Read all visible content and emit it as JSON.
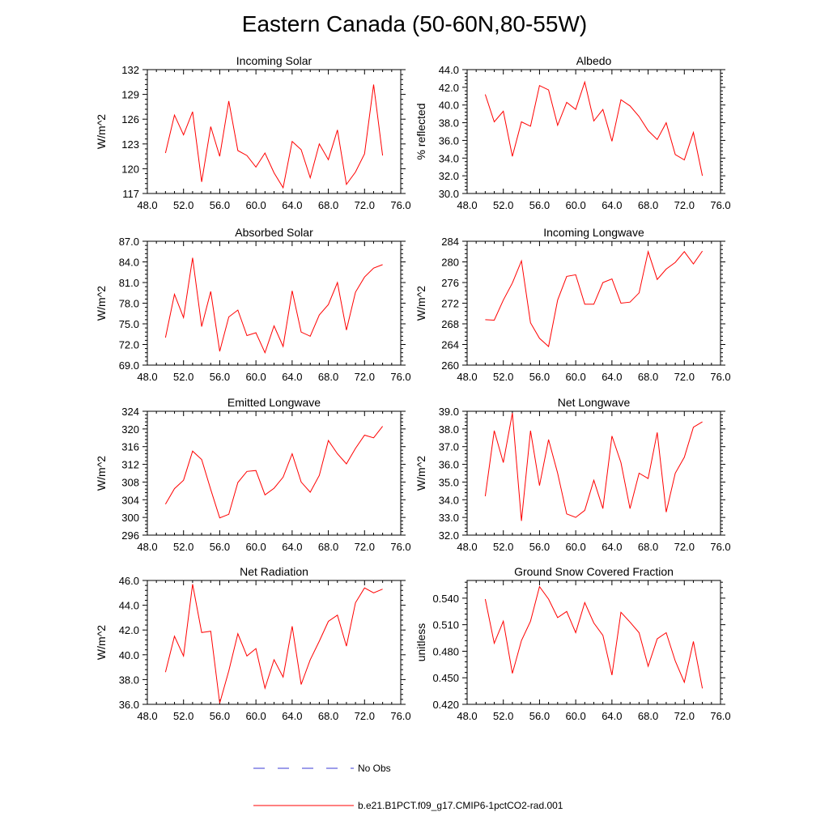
{
  "title": "Eastern Canada (50-60N,80-55W)",
  "colors": {
    "model_line": "#ff0000",
    "obs_line": "#3b3bd4",
    "axis": "#000000"
  },
  "legend": {
    "obs_label": "No Obs",
    "model_label": "b.e21.B1PCT.f09_g17.CMIP6-1pctCO2-rad.001"
  },
  "chart_data": [
    {
      "type": "line",
      "title": "Incoming Solar",
      "xlabel": "",
      "ylabel": "W/m^2",
      "xlim": [
        48,
        76
      ],
      "xticks": [
        48,
        52,
        56,
        60,
        64,
        68,
        72,
        76
      ],
      "xticklabels": [
        "48.0",
        "52.0",
        "56.0",
        "60.0",
        "64.0",
        "68.0",
        "72.0",
        "76.0"
      ],
      "ylim": [
        117,
        132
      ],
      "yticks": [
        117,
        120,
        123,
        126,
        129,
        132
      ],
      "yticklabels": [
        "117",
        "120",
        "123",
        "126",
        "129",
        "132"
      ],
      "x": [
        50,
        51,
        52,
        53,
        54,
        55,
        56,
        57,
        58,
        59,
        60,
        61,
        62,
        63,
        64,
        65,
        66,
        67,
        68,
        69,
        70,
        71,
        72,
        73,
        74
      ],
      "series": [
        {
          "name": "b.e21.B1PCT.f09_g17.CMIP6-1pctCO2-rad.001",
          "values": [
            121.9,
            126.5,
            124.1,
            126.9,
            118.4,
            125.1,
            121.5,
            128.2,
            122.2,
            121.6,
            120.2,
            121.9,
            119.5,
            117.7,
            123.3,
            122.3,
            118.9,
            123.0,
            121.1,
            124.7,
            118.1,
            119.6,
            121.8,
            130.2,
            121.6
          ]
        }
      ]
    },
    {
      "type": "line",
      "title": "Albedo",
      "xlabel": "",
      "ylabel": "% reflected",
      "xlim": [
        48,
        76
      ],
      "xticks": [
        48,
        52,
        56,
        60,
        64,
        68,
        72,
        76
      ],
      "xticklabels": [
        "48.0",
        "52.0",
        "56.0",
        "60.0",
        "64.0",
        "68.0",
        "72.0",
        "76.0"
      ],
      "ylim": [
        30,
        44
      ],
      "yticks": [
        30,
        32,
        34,
        36,
        38,
        40,
        42,
        44
      ],
      "yticklabels": [
        "30.0",
        "32.0",
        "34.0",
        "36.0",
        "38.0",
        "40.0",
        "42.0",
        "44.0"
      ],
      "x": [
        50,
        51,
        52,
        53,
        54,
        55,
        56,
        57,
        58,
        59,
        60,
        61,
        62,
        63,
        64,
        65,
        66,
        67,
        68,
        69,
        70,
        71,
        72,
        73,
        74
      ],
      "series": [
        {
          "name": "b.e21.B1PCT.f09_g17.CMIP6-1pctCO2-rad.001",
          "values": [
            41.2,
            38.1,
            39.3,
            34.2,
            38.1,
            37.6,
            42.2,
            41.7,
            37.7,
            40.3,
            39.5,
            42.6,
            38.2,
            39.5,
            35.9,
            40.6,
            39.9,
            38.7,
            37.1,
            36.1,
            38.0,
            34.4,
            33.8,
            36.9,
            32.0
          ]
        }
      ]
    },
    {
      "type": "line",
      "title": "Absorbed Solar",
      "xlabel": "",
      "ylabel": "W/m^2",
      "xlim": [
        48,
        76
      ],
      "xticks": [
        48,
        52,
        56,
        60,
        64,
        68,
        72,
        76
      ],
      "xticklabels": [
        "48.0",
        "52.0",
        "56.0",
        "60.0",
        "64.0",
        "68.0",
        "72.0",
        "76.0"
      ],
      "ylim": [
        69,
        87
      ],
      "yticks": [
        69,
        72,
        75,
        78,
        81,
        84,
        87
      ],
      "yticklabels": [
        "69.0",
        "72.0",
        "75.0",
        "78.0",
        "81.0",
        "84.0",
        "87.0"
      ],
      "x": [
        50,
        51,
        52,
        53,
        54,
        55,
        56,
        57,
        58,
        59,
        60,
        61,
        62,
        63,
        64,
        65,
        66,
        67,
        68,
        69,
        70,
        71,
        72,
        73,
        74
      ],
      "series": [
        {
          "name": "b.e21.B1PCT.f09_g17.CMIP6-1pctCO2-rad.001",
          "values": [
            73.0,
            79.3,
            75.9,
            84.6,
            74.6,
            79.7,
            71.0,
            76.0,
            77.0,
            73.3,
            73.7,
            70.8,
            74.7,
            71.7,
            79.8,
            73.8,
            73.2,
            76.3,
            77.8,
            81.0,
            74.1,
            79.6,
            81.8,
            83.1,
            83.6
          ]
        }
      ]
    },
    {
      "type": "line",
      "title": "Incoming Longwave",
      "xlabel": "",
      "ylabel": "W/m^2",
      "xlim": [
        48,
        76
      ],
      "xticks": [
        48,
        52,
        56,
        60,
        64,
        68,
        72,
        76
      ],
      "xticklabels": [
        "48.0",
        "52.0",
        "56.0",
        "60.0",
        "64.0",
        "68.0",
        "72.0",
        "76.0"
      ],
      "ylim": [
        260,
        284
      ],
      "yticks": [
        260,
        264,
        268,
        272,
        276,
        280,
        284
      ],
      "yticklabels": [
        "260",
        "264",
        "268",
        "272",
        "276",
        "280",
        "284"
      ],
      "x": [
        50,
        51,
        52,
        53,
        54,
        55,
        56,
        57,
        58,
        59,
        60,
        61,
        62,
        63,
        64,
        65,
        66,
        67,
        68,
        69,
        70,
        71,
        72,
        73,
        74
      ],
      "series": [
        {
          "name": "b.e21.B1PCT.f09_g17.CMIP6-1pctCO2-rad.001",
          "values": [
            268.8,
            268.7,
            272.6,
            275.9,
            280.2,
            268.2,
            265.2,
            263.6,
            272.6,
            277.2,
            277.5,
            271.8,
            271.8,
            276.0,
            276.7,
            272.0,
            272.2,
            274.0,
            282.0,
            276.6,
            278.6,
            279.9,
            282.0,
            279.6,
            282.1
          ]
        }
      ]
    },
    {
      "type": "line",
      "title": "Emitted Longwave",
      "xlabel": "",
      "ylabel": "W/m^2",
      "xlim": [
        48,
        76
      ],
      "xticks": [
        48,
        52,
        56,
        60,
        64,
        68,
        72,
        76
      ],
      "xticklabels": [
        "48.0",
        "52.0",
        "56.0",
        "60.0",
        "64.0",
        "68.0",
        "72.0",
        "76.0"
      ],
      "ylim": [
        296,
        324
      ],
      "yticks": [
        296,
        300,
        304,
        308,
        312,
        316,
        320,
        324
      ],
      "yticklabels": [
        "296",
        "300",
        "304",
        "308",
        "312",
        "316",
        "320",
        "324"
      ],
      "x": [
        50,
        51,
        52,
        53,
        54,
        55,
        56,
        57,
        58,
        59,
        60,
        61,
        62,
        63,
        64,
        65,
        66,
        67,
        68,
        69,
        70,
        71,
        72,
        73,
        74
      ],
      "series": [
        {
          "name": "b.e21.B1PCT.f09_g17.CMIP6-1pctCO2-rad.001",
          "values": [
            303.0,
            306.5,
            308.4,
            315.0,
            313.1,
            306.3,
            299.9,
            300.7,
            307.9,
            310.4,
            310.6,
            305.1,
            306.6,
            309.1,
            314.4,
            308.0,
            305.7,
            309.5,
            317.4,
            314.4,
            312.1,
            315.6,
            318.6,
            318.0,
            320.6
          ]
        }
      ]
    },
    {
      "type": "line",
      "title": "Net Longwave",
      "xlabel": "",
      "ylabel": "W/m^2",
      "xlim": [
        48,
        76
      ],
      "xticks": [
        48,
        52,
        56,
        60,
        64,
        68,
        72,
        76
      ],
      "xticklabels": [
        "48.0",
        "52.0",
        "56.0",
        "60.0",
        "64.0",
        "68.0",
        "72.0",
        "76.0"
      ],
      "ylim": [
        32,
        39
      ],
      "yticks": [
        32,
        33,
        34,
        35,
        36,
        37,
        38,
        39
      ],
      "yticklabels": [
        "32.0",
        "33.0",
        "34.0",
        "35.0",
        "36.0",
        "37.0",
        "38.0",
        "39.0"
      ],
      "x": [
        50,
        51,
        52,
        53,
        54,
        55,
        56,
        57,
        58,
        59,
        60,
        61,
        62,
        63,
        64,
        65,
        66,
        67,
        68,
        69,
        70,
        71,
        72,
        73,
        74
      ],
      "series": [
        {
          "name": "b.e21.B1PCT.f09_g17.CMIP6-1pctCO2-rad.001",
          "values": [
            34.2,
            37.9,
            36.1,
            38.9,
            32.8,
            37.9,
            34.8,
            37.4,
            35.5,
            33.2,
            33.0,
            33.4,
            35.1,
            33.5,
            37.6,
            36.1,
            33.5,
            35.5,
            35.2,
            37.8,
            33.3,
            35.5,
            36.4,
            38.1,
            38.4
          ]
        }
      ]
    },
    {
      "type": "line",
      "title": "Net Radiation",
      "xlabel": "",
      "ylabel": "W/m^2",
      "xlim": [
        48,
        76
      ],
      "xticks": [
        48,
        52,
        56,
        60,
        64,
        68,
        72,
        76
      ],
      "xticklabels": [
        "48.0",
        "52.0",
        "56.0",
        "60.0",
        "64.0",
        "68.0",
        "72.0",
        "76.0"
      ],
      "ylim": [
        36,
        46
      ],
      "yticks": [
        36,
        38,
        40,
        42,
        44,
        46
      ],
      "yticklabels": [
        "36.0",
        "38.0",
        "40.0",
        "42.0",
        "44.0",
        "46.0"
      ],
      "x": [
        50,
        51,
        52,
        53,
        54,
        55,
        56,
        57,
        58,
        59,
        60,
        61,
        62,
        63,
        64,
        65,
        66,
        67,
        68,
        69,
        70,
        71,
        72,
        73,
        74
      ],
      "series": [
        {
          "name": "b.e21.B1PCT.f09_g17.CMIP6-1pctCO2-rad.001",
          "values": [
            38.6,
            41.5,
            39.9,
            45.7,
            41.8,
            41.9,
            36.1,
            38.7,
            41.7,
            39.9,
            40.5,
            37.3,
            39.6,
            38.2,
            42.3,
            37.6,
            39.6,
            41.1,
            42.7,
            43.2,
            40.7,
            44.2,
            45.4,
            45.0,
            45.3
          ]
        }
      ]
    },
    {
      "type": "line",
      "title": "Ground Snow Covered Fraction",
      "xlabel": "",
      "ylabel": "unitless",
      "xlim": [
        48,
        76
      ],
      "xticks": [
        48,
        52,
        56,
        60,
        64,
        68,
        72,
        76
      ],
      "xticklabels": [
        "48.0",
        "52.0",
        "56.0",
        "60.0",
        "64.0",
        "68.0",
        "72.0",
        "76.0"
      ],
      "ylim": [
        0.42,
        0.56
      ],
      "yticks": [
        0.42,
        0.45,
        0.48,
        0.51,
        0.54
      ],
      "yticklabels": [
        "0.420",
        "0.450",
        "0.480",
        "0.510",
        "0.540"
      ],
      "x": [
        50,
        51,
        52,
        53,
        54,
        55,
        56,
        57,
        58,
        59,
        60,
        61,
        62,
        63,
        64,
        65,
        66,
        67,
        68,
        69,
        70,
        71,
        72,
        73,
        74
      ],
      "series": [
        {
          "name": "b.e21.B1PCT.f09_g17.CMIP6-1pctCO2-rad.001",
          "values": [
            0.539,
            0.489,
            0.514,
            0.455,
            0.492,
            0.514,
            0.553,
            0.539,
            0.518,
            0.525,
            0.501,
            0.535,
            0.512,
            0.498,
            0.453,
            0.524,
            0.513,
            0.501,
            0.463,
            0.494,
            0.501,
            0.469,
            0.445,
            0.491,
            0.438
          ]
        }
      ]
    }
  ]
}
